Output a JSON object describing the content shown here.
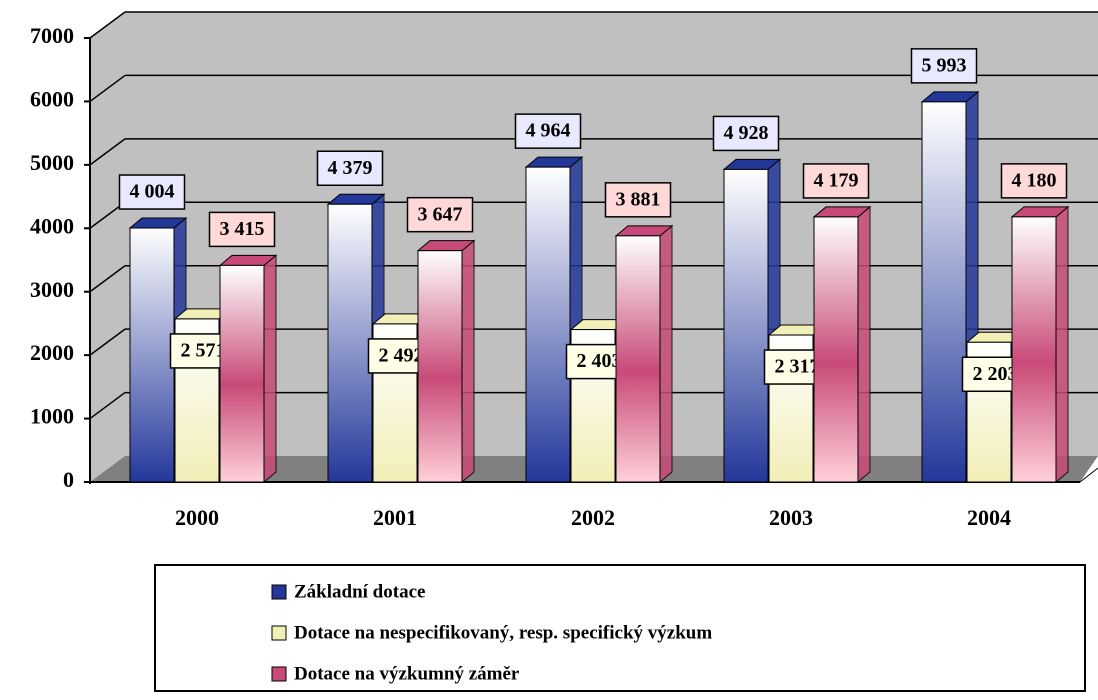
{
  "chart_data": {
    "type": "bar3d",
    "categories": [
      "2000",
      "2001",
      "2002",
      "2003",
      "2004"
    ],
    "series": [
      {
        "name": "Základní dotace",
        "color": "#23379a",
        "values": [
          4004,
          4379,
          4964,
          4928,
          5993
        ],
        "value_labels": [
          "4 004",
          "4 379",
          "4 964",
          "4 928",
          "5 993"
        ]
      },
      {
        "name": "Dotace na nespecifikovaný, resp. specifický výzkum",
        "color": "#f2eeb8",
        "values": [
          2571,
          2492,
          2403,
          2317,
          2203
        ],
        "value_labels": [
          "2 571",
          "2 492",
          "2 403",
          "2 317",
          "2 203"
        ]
      },
      {
        "name": "Dotace na výzkumný záměr",
        "color": "#c84a78",
        "values": [
          3415,
          3647,
          3881,
          4179,
          4180
        ],
        "value_labels": [
          "3 415",
          "3 647",
          "3 881",
          "4 179",
          "4 180"
        ]
      }
    ],
    "ylim": [
      0,
      7000
    ],
    "yticks": [
      0,
      1000,
      2000,
      3000,
      4000,
      5000,
      6000,
      7000
    ],
    "grid": true
  }
}
